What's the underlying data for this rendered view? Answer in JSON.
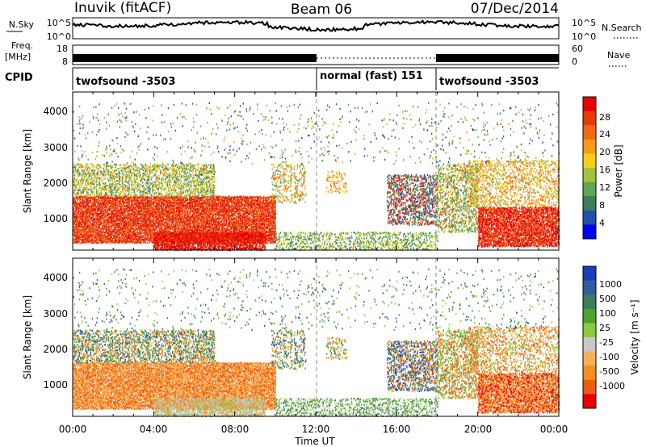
{
  "header": {
    "station": "Inuvik (fitACF)",
    "beam": "Beam 06",
    "date": "07/Dec/2014"
  },
  "rows": {
    "nsky_label": "N.Sky",
    "nsky_ticks": [
      "10^5",
      "10^0"
    ],
    "nsearch_label": "N.Search",
    "nsearch_ticks": [
      "10^5",
      "10^0"
    ],
    "freq_label": "Freq.",
    "freq_unit": "[MHz]",
    "freq_ticks": [
      "18",
      "8"
    ],
    "nave_label": "Nave",
    "nave_ticks": [
      "60",
      "0"
    ],
    "cpid_label": "CPID",
    "cpid_segments": [
      "twofsound -3503",
      "normal (fast) 151",
      "twofsound -3503"
    ]
  },
  "colors": {
    "power": [
      "#0000ff",
      "#1f4fa6",
      "#3e7c5e",
      "#5fa654",
      "#a3c23f",
      "#f5cf18",
      "#f59b16",
      "#ef6a10",
      "#e83a0a",
      "#e60000"
    ],
    "velocity": [
      "#e60000",
      "#ee5a10",
      "#f58f1f",
      "#f3b25a",
      "#c8c8c8",
      "#8acb3f",
      "#4da22f",
      "#3f7c58",
      "#2f5ca0",
      "#1a3db8"
    ]
  },
  "chart_data": [
    {
      "type": "heatmap",
      "title": "Power",
      "xlabel": "",
      "ylabel": "Slant Range [km]",
      "x_ticks": [
        "00:00",
        "04:00",
        "08:00",
        "12:00",
        "16:00",
        "20:00",
        "00:00"
      ],
      "y_ticks": [
        "1000",
        "2000",
        "3000",
        "4000"
      ],
      "ylim": [
        180,
        4580
      ],
      "colorbar": {
        "label": "Power [dB]",
        "ticks": [
          "28",
          "24",
          "20",
          "16",
          "12",
          "8",
          "4"
        ]
      }
    },
    {
      "type": "heatmap",
      "title": "Velocity",
      "xlabel": "Time UT",
      "ylabel": "Slant Range [km]",
      "x_ticks": [
        "00:00",
        "04:00",
        "08:00",
        "12:00",
        "16:00",
        "20:00",
        "00:00"
      ],
      "y_ticks": [
        "1000",
        "2000",
        "3000",
        "4000"
      ],
      "ylim": [
        180,
        4580
      ],
      "colorbar": {
        "label": "Velocity [m s⁻¹]",
        "ticks": [
          "1000",
          "500",
          "100",
          "25",
          "-25",
          "-100",
          "-500",
          "-1000"
        ]
      }
    }
  ]
}
